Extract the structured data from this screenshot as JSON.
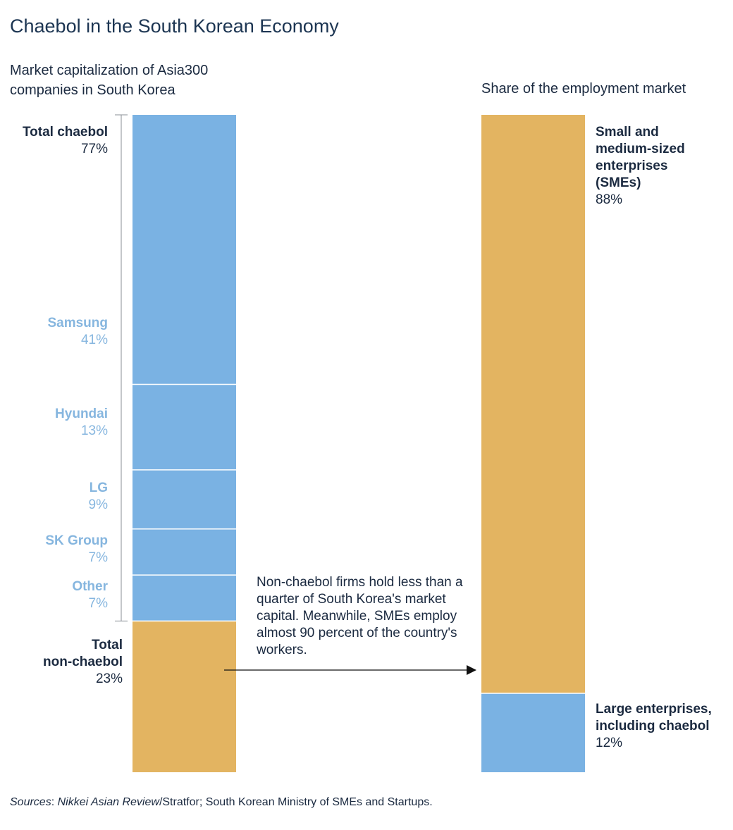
{
  "title": "Chaebol in the South Korean Economy",
  "source": {
    "prefix": "Sources",
    "sep1": ": ",
    "pub1": "Nikkei Asian Review",
    "mid": "/Stratfor; South Korean Ministry of SMEs and Startups."
  },
  "annotation": "Non-chaebol firms hold less than a quarter of South Korea's market capital. Meanwhile, SMEs employ almost 90 percent of the country's workers.",
  "colors": {
    "blue": "#7ab2e3",
    "gold": "#e3b461",
    "dark_text": "#1b2a40",
    "light_text": "#86b6df"
  },
  "chart_data": [
    {
      "type": "bar",
      "stacked": true,
      "title": "Market capitalization of Asia300 companies in South Korea",
      "unit": "%",
      "segments": [
        {
          "name": "Samsung",
          "value": 41,
          "pct_label": "41%",
          "color": "#7ab2e3"
        },
        {
          "name": "Hyundai",
          "value": 13,
          "pct_label": "13%",
          "color": "#7ab2e3"
        },
        {
          "name": "LG",
          "value": 9,
          "pct_label": "9%",
          "color": "#7ab2e3"
        },
        {
          "name": "SK Group",
          "value": 7,
          "pct_label": "7%",
          "color": "#7ab2e3"
        },
        {
          "name": "Other",
          "value": 7,
          "pct_label": "7%",
          "color": "#7ab2e3"
        },
        {
          "name": "Total non-chaebol",
          "name_line1": "Total",
          "name_line2": "non-chaebol",
          "value": 23,
          "pct_label": "23%",
          "color": "#e3b461"
        }
      ],
      "group": {
        "name": "Total chaebol",
        "value": 77,
        "pct_label": "77%"
      }
    },
    {
      "type": "bar",
      "stacked": true,
      "title": "Share of the employment market",
      "unit": "%",
      "segments": [
        {
          "name": "Small and medium-sized enterprises (SMEs)",
          "name_lines": [
            "Small and",
            "medium-sized",
            "enterprises",
            "(SMEs)"
          ],
          "value": 88,
          "pct_label": "88%",
          "color": "#e3b461"
        },
        {
          "name": "Large enterprises, including chaebol",
          "name_lines": [
            "Large enterprises,",
            "including chaebol"
          ],
          "value": 12,
          "pct_label": "12%",
          "color": "#7ab2e3"
        }
      ]
    }
  ]
}
